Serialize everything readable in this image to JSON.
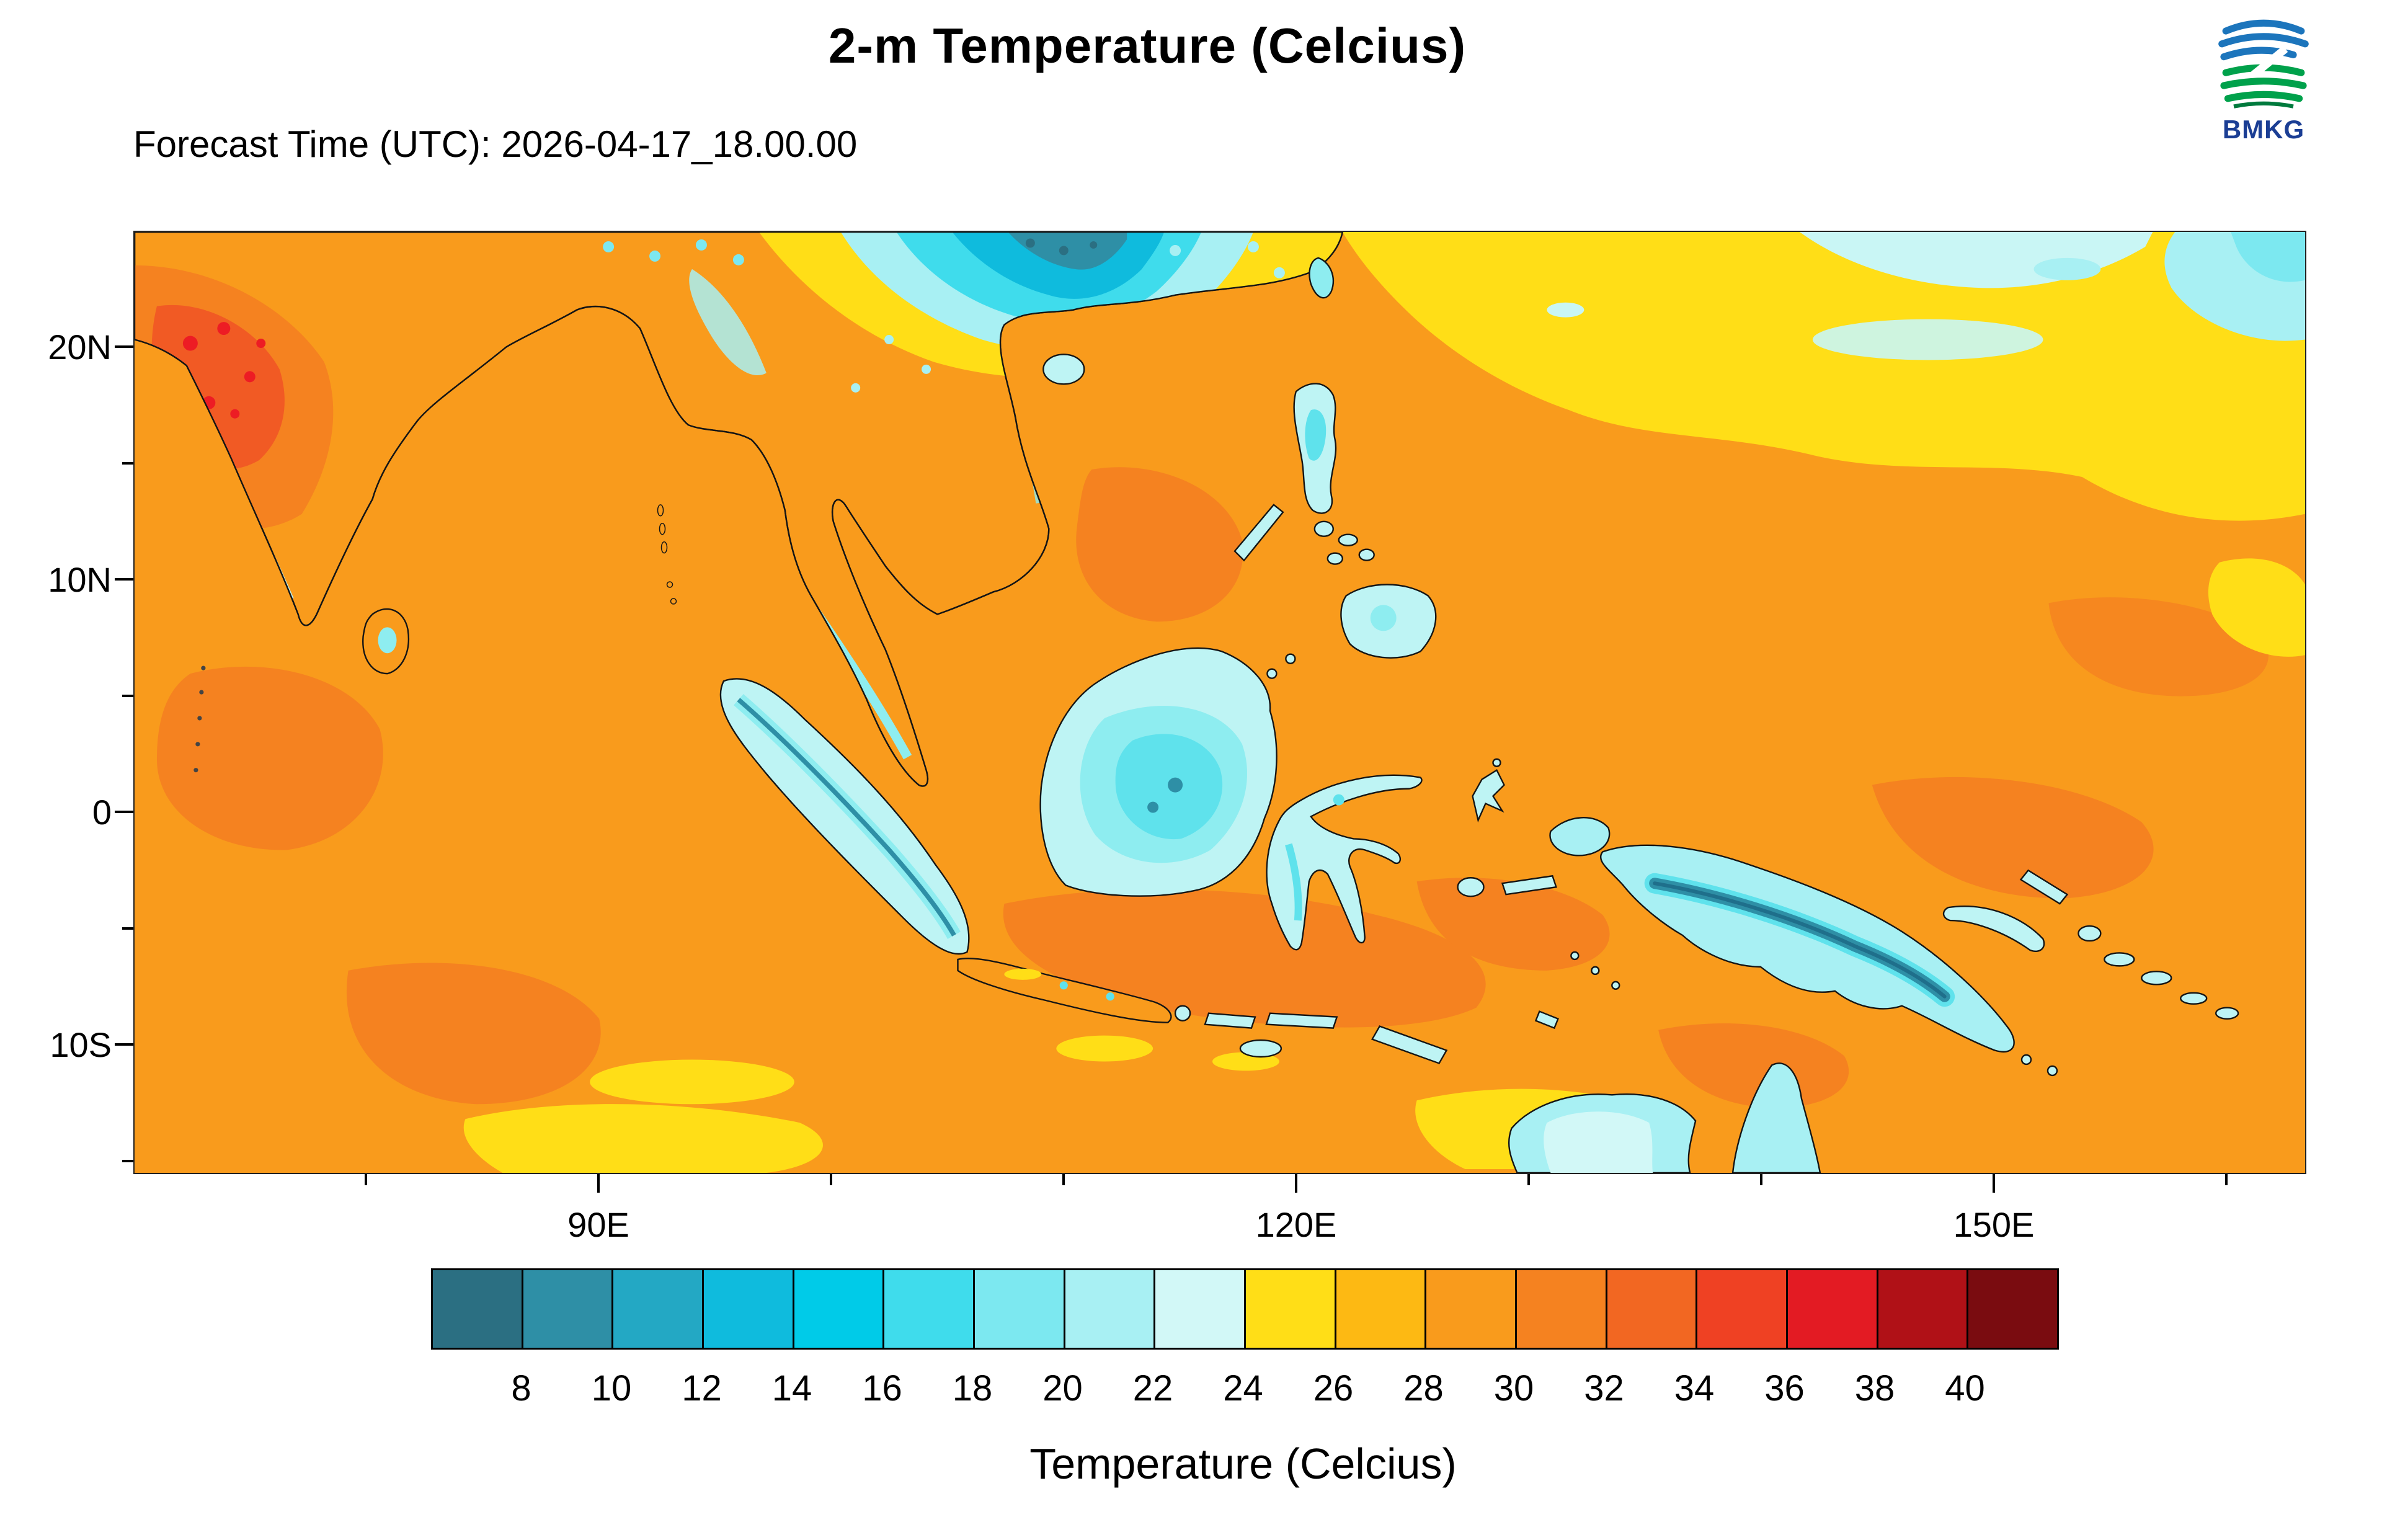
{
  "header": {
    "title": "2-m Temperature (Celcius)",
    "subtitle": "Forecast Time (UTC): 2026-04-17_18.00.00"
  },
  "logo": {
    "text": "BMKG"
  },
  "map": {
    "lat_labels": [
      "20N",
      "10N",
      "0",
      "10S"
    ],
    "lon_labels": [
      "90E",
      "120E",
      "150E"
    ]
  },
  "colorbar": {
    "title": "Temperature (Celcius)",
    "tick_labels": [
      "8",
      "10",
      "12",
      "14",
      "16",
      "18",
      "20",
      "22",
      "24",
      "26",
      "28",
      "30",
      "32",
      "34",
      "36",
      "38",
      "40"
    ],
    "colors": [
      "#2B6F82",
      "#2E8FA6",
      "#23A8C4",
      "#0FBBDD",
      "#00CBE8",
      "#3FDCEC",
      "#7CE8F0",
      "#A8F0F3",
      "#D2F8F7",
      "#FFDE17",
      "#FDB913",
      "#F99B1C",
      "#F58220",
      "#F26722",
      "#EF4123",
      "#E31B23",
      "#B01117",
      "#7A0C10"
    ]
  },
  "chart_data": {
    "type": "heatmap",
    "title": "2-m Temperature (Celcius)",
    "forecast_time_utc": "2026-04-17_18.00.00",
    "agency": "BMKG",
    "colorbar_label": "Temperature (Celcius)",
    "levels_celsius": [
      8,
      10,
      12,
      14,
      16,
      18,
      20,
      22,
      24,
      26,
      28,
      30,
      32,
      34,
      36,
      38,
      40
    ],
    "palette": [
      "#2B6F82",
      "#2E8FA6",
      "#23A8C4",
      "#0FBBDD",
      "#00CBE8",
      "#3FDCEC",
      "#7CE8F0",
      "#A8F0F3",
      "#D2F8F7",
      "#FFDE17",
      "#FDB913",
      "#F99B1C",
      "#F58220",
      "#F26722",
      "#EF4123",
      "#E31B23",
      "#B01117",
      "#7A0C10"
    ],
    "x_axis": {
      "tick_labels": [
        "90E",
        "120E",
        "150E"
      ],
      "approx_extent_deg_east": [
        70,
        163
      ]
    },
    "y_axis": {
      "tick_labels": [
        "20N",
        "10N",
        "0",
        "10S"
      ],
      "approx_extent_deg_north": [
        -15.5,
        25
      ]
    },
    "field_summary": [
      {
        "region": "Open ocean over most of the domain",
        "approx_temp_c": "28-30"
      },
      {
        "region": "North Pacific, upper-right quadrant",
        "approx_temp_c": "24-26 with pools of 18-24"
      },
      {
        "region": "Tibetan Plateau / SW China highlands, top centre",
        "approx_temp_c": "8-18"
      },
      {
        "region": "Northwest India, upper left",
        "approx_temp_c": "32-38"
      },
      {
        "region": "Mountain interiors of Sumatra, Borneo, Sulawesi, Philippines",
        "approx_temp_c": "18-24"
      },
      {
        "region": "New Guinea central ridge",
        "approx_temp_c": "8-16"
      },
      {
        "region": "Northern Australia, bottom centre-right",
        "approx_temp_c": "18-26"
      },
      {
        "region": "Yellow patches in southern Indian Ocean and marginal seas",
        "approx_temp_c": "24-26"
      }
    ]
  }
}
